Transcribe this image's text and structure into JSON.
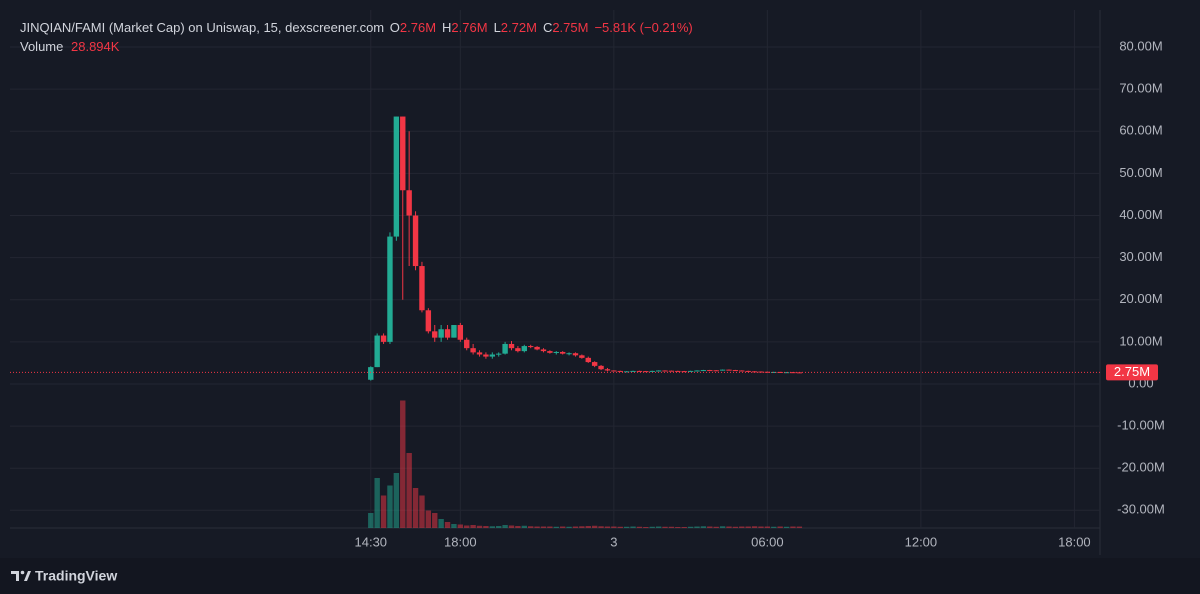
{
  "chart_data": {
    "type": "candlestick",
    "legend": {
      "title": "JINQIAN/FAMI (Market Cap) on Uniswap, 15, dexscreener.com",
      "open_label": "O",
      "open": "2.76M",
      "high_label": "H",
      "high": "2.76M",
      "low_label": "L",
      "low": "2.72M",
      "close_label": "C",
      "close": "2.75M",
      "change": "−5.81K (−0.21%)",
      "volume_label": "Volume",
      "volume": "28.894K"
    },
    "x": [
      14.5,
      14.75,
      15,
      15.25,
      15.5,
      15.75,
      16,
      16.25,
      16.5,
      16.75,
      17,
      17.25,
      17.5,
      17.75,
      18,
      18.25,
      18.5,
      18.75,
      19,
      19.25,
      19.5,
      19.75,
      20,
      20.25,
      20.5,
      20.75,
      21,
      21.25,
      21.5,
      21.75,
      22,
      22.25,
      22.5,
      22.75,
      23,
      23.25,
      23.5,
      23.75,
      24,
      24.25,
      24.5,
      24.75,
      25,
      25.25,
      25.5,
      25.75,
      26,
      26.25,
      26.5,
      26.75,
      27,
      27.25,
      27.5,
      27.75,
      28,
      28.25,
      28.5,
      28.75,
      29,
      29.25,
      29.5,
      29.75,
      30,
      30.25,
      30.5,
      30.75,
      31,
      31.25
    ],
    "open": [
      1,
      4,
      11.5,
      10,
      35,
      63.5,
      46,
      40,
      28,
      17.5,
      12.5,
      11,
      13,
      11,
      14,
      10.5,
      8.5,
      7.5,
      7,
      6.5,
      7,
      7.2,
      9.5,
      8.5,
      7.8,
      9,
      8.8,
      8.2,
      7.8,
      7.4,
      7.6,
      7.2,
      7.3,
      6.8,
      6.2,
      5.2,
      4.3,
      3.5,
      3.2,
      3.1,
      3.0,
      3.0,
      3.1,
      3.05,
      3.0,
      3.1,
      3.2,
      3.15,
      3.1,
      3.05,
      3.0,
      3.1,
      3.2,
      3.3,
      3.25,
      3.2,
      3.4,
      3.3,
      3.2,
      3.1,
      3.0,
      2.95,
      2.9,
      2.85,
      2.85,
      2.8,
      2.8,
      2.76
    ],
    "high": [
      4.2,
      12,
      12,
      36,
      63.5,
      63.5,
      60,
      41,
      29,
      18,
      14,
      14,
      14,
      14,
      14.5,
      11,
      9.5,
      8,
      7.5,
      7.5,
      7.5,
      10,
      10.2,
      9,
      9.3,
      9.3,
      9,
      8.5,
      8,
      7.8,
      7.8,
      7.5,
      7.5,
      7,
      6.5,
      5.4,
      4.5,
      3.8,
      3.25,
      3.15,
      3.05,
      3.15,
      3.15,
      3.1,
      3.15,
      3.25,
      3.25,
      3.2,
      3.15,
      3.1,
      3.15,
      3.25,
      3.35,
      3.35,
      3.3,
      3.45,
      3.45,
      3.35,
      3.25,
      3.15,
      3.05,
      3.0,
      2.95,
      2.9,
      2.9,
      2.85,
      2.85,
      2.76
    ],
    "low": [
      0.8,
      4,
      9.5,
      9.5,
      34,
      20,
      28,
      27,
      17,
      12,
      10,
      10,
      10.5,
      11,
      10,
      8,
      7,
      6.5,
      6,
      6,
      6.5,
      7,
      8,
      7.5,
      7.5,
      8.5,
      8,
      7.5,
      7.2,
      7,
      7,
      6.8,
      6.5,
      6,
      5,
      4,
      3.3,
      3,
      3.05,
      2.95,
      2.95,
      2.95,
      3.0,
      2.95,
      2.95,
      3.05,
      3.1,
      3.05,
      3.0,
      2.95,
      2.95,
      3.05,
      3.15,
      3.2,
      3.15,
      3.15,
      3.25,
      3.15,
      3.05,
      2.95,
      2.9,
      2.85,
      2.8,
      2.8,
      2.75,
      2.75,
      2.71,
      2.72
    ],
    "close": [
      4,
      11.5,
      10,
      35,
      63.5,
      46,
      40,
      28,
      17.5,
      12.5,
      11,
      13,
      11,
      14,
      10.5,
      8.5,
      7.5,
      7,
      6.5,
      7,
      7.2,
      9.5,
      8.5,
      7.8,
      9,
      8.8,
      8.2,
      7.8,
      7.4,
      7.6,
      7.2,
      7.3,
      6.8,
      6.2,
      5.2,
      4.3,
      3.5,
      3.2,
      3.1,
      3.0,
      3.0,
      3.1,
      3.05,
      3.0,
      3.1,
      3.2,
      3.15,
      3.1,
      3.05,
      3.0,
      3.1,
      3.2,
      3.3,
      3.25,
      3.2,
      3.4,
      3.3,
      3.2,
      3.1,
      3.0,
      2.95,
      2.9,
      2.85,
      2.85,
      2.8,
      2.8,
      2.76,
      2.75
    ],
    "volume": [
      300,
      1000,
      650,
      850,
      1100,
      2550,
      1500,
      800,
      650,
      350,
      300,
      180,
      120,
      80,
      70,
      50,
      60,
      45,
      40,
      35,
      40,
      60,
      50,
      40,
      45,
      35,
      30,
      30,
      30,
      25,
      30,
      25,
      30,
      35,
      40,
      45,
      35,
      30,
      30,
      25,
      25,
      30,
      25,
      20,
      25,
      30,
      25,
      25,
      20,
      20,
      25,
      30,
      35,
      30,
      25,
      35,
      30,
      25,
      30,
      30,
      35,
      30,
      30,
      25,
      30,
      25,
      30,
      28.894
    ],
    "up_color": "#22ab94",
    "down_color": "#f23645",
    "ylim": [
      -34.2,
      88.8
    ],
    "yticks": [
      {
        "value": 80,
        "label": "80.00M"
      },
      {
        "value": 70,
        "label": "70.00M"
      },
      {
        "value": 60,
        "label": "60.00M"
      },
      {
        "value": 50,
        "label": "50.00M"
      },
      {
        "value": 40,
        "label": "40.00M"
      },
      {
        "value": 30,
        "label": "30.00M"
      },
      {
        "value": 20,
        "label": "20.00M"
      },
      {
        "value": 10,
        "label": "10.00M"
      },
      {
        "value": 0,
        "label": "0.00"
      },
      {
        "value": -10,
        "label": "-10.00M"
      },
      {
        "value": -20,
        "label": "-20.00M"
      },
      {
        "value": -30,
        "label": "-30.00M"
      }
    ],
    "xlim": [
      0.4,
      43
    ],
    "xticks": [
      {
        "value": 14.5,
        "label": "14:30"
      },
      {
        "value": 18,
        "label": "18:00"
      },
      {
        "value": 24,
        "label": "3"
      },
      {
        "value": 30,
        "label": "06:00"
      },
      {
        "value": 36,
        "label": "12:00"
      },
      {
        "value": 42,
        "label": "18:00"
      }
    ],
    "vlim": [
      0,
      2600
    ],
    "last_price": {
      "value": 2.75,
      "label": "2.75M"
    },
    "grid": true
  },
  "footer": {
    "brand": "TradingView"
  }
}
